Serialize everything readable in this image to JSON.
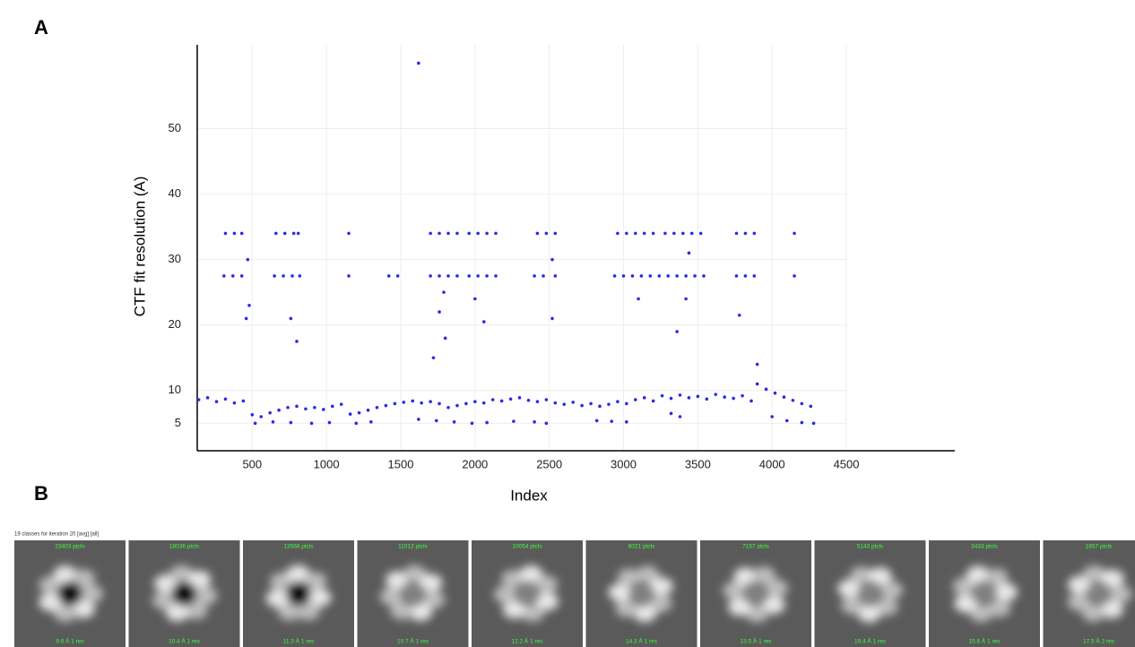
{
  "panel_labels": [
    "A",
    "B"
  ],
  "chart_data": {
    "type": "scatter",
    "x_label": "Index",
    "y_label": "CTF fit resolution (A)",
    "xlim": [
      130,
      5230
    ],
    "ylim": [
      0.8,
      62.8
    ],
    "xticks": [
      500,
      1000,
      1500,
      2000,
      2500,
      3000,
      3500,
      4000,
      4500
    ],
    "yticks": [
      5,
      10,
      20,
      30,
      40,
      50
    ],
    "grid": true,
    "series": [
      {
        "color": "#2b2be6",
        "x": [
          140,
          200,
          260,
          320,
          380,
          440,
          500,
          560,
          620,
          680,
          740,
          800,
          860,
          920,
          980,
          1040,
          1100,
          1160,
          1220,
          1280,
          1340,
          1400,
          1460,
          1520,
          1580,
          1640,
          1700,
          1760,
          1820,
          1880,
          1940,
          2000,
          2060,
          2120,
          2180,
          2240,
          2300,
          2360,
          2420,
          2480,
          2540,
          2600,
          2660,
          2720,
          2780,
          2840,
          2900,
          2960,
          3020,
          3080,
          3140,
          3200,
          3260,
          3320,
          3380,
          3440,
          3500,
          3560,
          3620,
          3680,
          3740,
          3800,
          3860,
          3900,
          3960,
          4020,
          4080,
          4140,
          4200,
          4260,
          520,
          640,
          760,
          900,
          1020,
          1200,
          1300,
          1620,
          1740,
          1860,
          1980,
          2080,
          2260,
          2400,
          2480,
          2820,
          2920,
          3020,
          3320,
          3380,
          4000,
          4100,
          4200,
          4280,
          320,
          380,
          430,
          660,
          720,
          780,
          810,
          1150,
          1700,
          1760,
          1820,
          1880,
          1960,
          2020,
          2080,
          2140,
          2420,
          2480,
          2540,
          2960,
          3020,
          3080,
          3140,
          3200,
          3280,
          3340,
          3400,
          3460,
          3520,
          3760,
          3820,
          3880,
          4150,
          310,
          370,
          430,
          650,
          710,
          770,
          820,
          1150,
          1420,
          1480,
          1700,
          1760,
          1820,
          1880,
          1960,
          2020,
          2080,
          2140,
          2400,
          2460,
          2540,
          2940,
          3000,
          3060,
          3120,
          3180,
          3240,
          3300,
          3360,
          3420,
          3480,
          3540,
          3760,
          3820,
          3880,
          4150,
          1620,
          460,
          480,
          470,
          800,
          760,
          1720,
          1790,
          1760,
          2000,
          2060,
          2520,
          2520,
          3100,
          3360,
          3440,
          3420,
          3780,
          3900,
          1800
        ],
        "y": [
          8.6,
          8.9,
          8.3,
          8.7,
          8.1,
          8.4,
          6.3,
          6.0,
          6.6,
          7.0,
          7.4,
          7.6,
          7.2,
          7.4,
          7.1,
          7.6,
          7.9,
          6.4,
          6.6,
          7.0,
          7.4,
          7.7,
          8.0,
          8.2,
          8.4,
          8.1,
          8.3,
          8.0,
          7.4,
          7.7,
          8.0,
          8.3,
          8.1,
          8.6,
          8.4,
          8.7,
          8.9,
          8.5,
          8.3,
          8.6,
          8.1,
          7.9,
          8.2,
          7.7,
          8.0,
          7.6,
          7.9,
          8.3,
          8.0,
          8.6,
          8.9,
          8.4,
          9.2,
          8.8,
          9.3,
          8.9,
          9.1,
          8.7,
          9.4,
          9.0,
          8.8,
          9.2,
          8.4,
          11.0,
          10.2,
          9.6,
          9.0,
          8.5,
          8.0,
          7.6,
          5.0,
          5.2,
          5.1,
          5.0,
          5.1,
          5.0,
          5.2,
          5.6,
          5.4,
          5.2,
          5.0,
          5.1,
          5.3,
          5.2,
          5.0,
          5.4,
          5.3,
          5.2,
          6.5,
          6.0,
          6.0,
          5.4,
          5.1,
          5.0,
          34,
          34,
          34,
          34,
          34,
          34,
          34,
          34,
          34,
          34,
          34,
          34,
          34,
          34,
          34,
          34,
          34,
          34,
          34,
          34,
          34,
          34,
          34,
          34,
          34,
          34,
          34,
          34,
          34,
          34,
          34,
          34,
          34,
          27.5,
          27.5,
          27.5,
          27.5,
          27.5,
          27.5,
          27.5,
          27.5,
          27.5,
          27.5,
          27.5,
          27.5,
          27.5,
          27.5,
          27.5,
          27.5,
          27.5,
          27.5,
          27.5,
          27.5,
          27.5,
          27.5,
          27.5,
          27.5,
          27.5,
          27.5,
          27.5,
          27.5,
          27.5,
          27.5,
          27.5,
          27.5,
          27.5,
          27.5,
          27.5,
          27.5,
          60,
          21,
          23,
          30,
          17.5,
          21,
          15,
          25,
          22,
          24,
          20.5,
          21,
          30,
          24,
          19,
          31,
          24,
          21.5,
          14,
          18
        ]
      }
    ]
  },
  "panel_b": {
    "header": "19 classes for iteration 20 [avg] [all]",
    "classes": [
      {
        "top": "23403 ptcls",
        "bottom": "9.6 Å 1 res"
      },
      {
        "top": "18036 ptcls",
        "bottom": "10.4 Å 1 res"
      },
      {
        "top": "13568 ptcls",
        "bottom": "11.3 Å 1 res"
      },
      {
        "top": "11012 ptcls",
        "bottom": "10.7 Å 1 res"
      },
      {
        "top": "10054 ptcls",
        "bottom": "12.2 Å 1 res"
      },
      {
        "top": "8021 ptcls",
        "bottom": "14.3 Å 1 res"
      },
      {
        "top": "7157 ptcls",
        "bottom": "13.5 Å 1 res"
      },
      {
        "top": "5143 ptcls",
        "bottom": "19.4 Å 1 res"
      },
      {
        "top": "3433 ptcls",
        "bottom": "15.6 Å 1 res"
      },
      {
        "top": "1657 ptcls",
        "bottom": "17.5 Å 2 res"
      }
    ]
  }
}
